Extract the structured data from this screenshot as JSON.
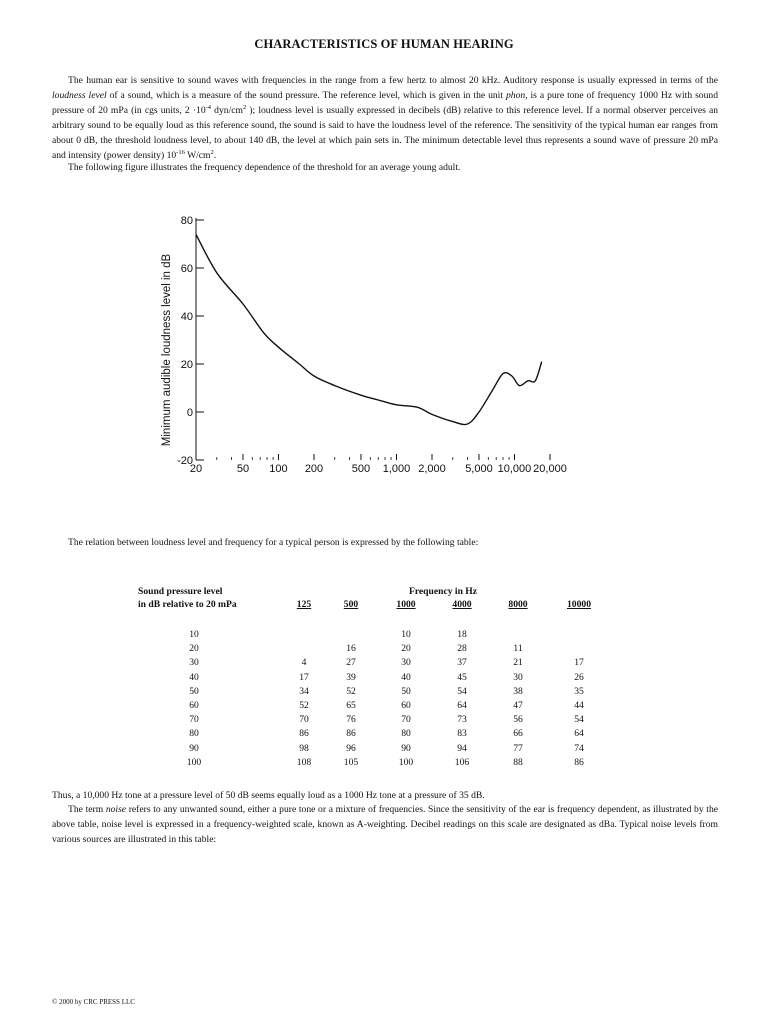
{
  "document": {
    "title": "CHARACTERISTICS OF HUMAN HEARING",
    "para1": {
      "p1": "The human ear is sensitive to sound waves with frequencies in the range from a few hertz to almost 20 kHz. Auditory response is usually expressed in terms of the ",
      "loudness_level": "loudness level",
      "p2": " of a sound, which is a measure of the sound pressure. The reference level, which is given in the unit ",
      "phon": "phon,",
      "p3": " is a pure tone of frequency 1000 Hz with sound pressure of 20 mPa (in cgs units, 2 ·10",
      "sup1": "-4",
      "p4": " dyn/cm",
      "sup2": "2",
      "p5": " ); loudness level is usually expressed in decibels (dB) relative to this reference level. If a normal observer perceives an arbitrary sound to be equally loud as this reference sound, the sound is said to have the loudness level of the reference. The sensitivity of the typical human ear ranges from about 0 dB, the threshold loudness level, to about 140 dB, the level at which pain sets in. The minimum detectable level thus represents a sound wave of pressure 20 mPa and intensity (power density) 10",
      "sup3": "-16",
      "p6": " W/cm",
      "sup4": "2",
      "p7": "."
    },
    "para2": "The following figure illustrates the frequency dependence of the threshold for an average young adult.",
    "para3": "The relation between loudness level and frequency for a typical person is expressed by the following table:",
    "para4": "Thus, a 10,000 Hz tone at a pressure level of 50 dB seems equally loud as a 1000 Hz tone at a pressure of 35 dB.",
    "para5": {
      "p1": "The term ",
      "noise": "noise",
      "p2": " refers to any unwanted sound, either a pure tone or a mixture of frequencies. Since the sensitivity of the ear is frequency dependent, as illustrated by the above table, noise level is expressed in a frequency-weighted scale, known as A-weighting. Decibel readings on this scale are designated as dBa. Typical noise levels from various sources are illustrated in this table:"
    },
    "footer": "© 2000 by CRC PRESS LLC"
  },
  "chart_data": {
    "type": "line",
    "title": "",
    "xlabel": "",
    "ylabel": "Minimum audible loudness level in dB",
    "x_scale": "log",
    "xlim": [
      20,
      20000
    ],
    "ylim": [
      -20,
      80
    ],
    "y_ticks": [
      80,
      60,
      40,
      20,
      0,
      -20
    ],
    "x_ticks": [
      20,
      50,
      100,
      200,
      500,
      1000,
      2000,
      5000,
      10000,
      20000
    ],
    "x_tick_labels": [
      "20",
      "50",
      "100",
      "200",
      "500",
      "1,000",
      "2,000",
      "5,000",
      "10,000",
      "20,000"
    ],
    "grid": false,
    "series": [
      {
        "name": "",
        "x": [
          20,
          30,
          50,
          75,
          100,
          150,
          200,
          300,
          500,
          700,
          1000,
          1500,
          2000,
          3000,
          4000,
          5000,
          6500,
          8000,
          9500,
          11000,
          13000,
          15000,
          17000
        ],
        "y": [
          74,
          58,
          45,
          33,
          27,
          20,
          15,
          11,
          7,
          5,
          3,
          2,
          -1,
          -4,
          -5,
          0,
          9,
          16,
          15,
          11,
          13,
          13,
          21
        ]
      }
    ]
  },
  "loudness_table": {
    "row_header_line1": "Sound pressure  level",
    "row_header_line2": "in dB relative to 20 mPa",
    "group_header": "Frequency in Hz",
    "columns": [
      "125",
      "500",
      "1000",
      "4000",
      "8000",
      "10000"
    ],
    "rows": [
      {
        "level": "10",
        "values": [
          "",
          "",
          "10",
          "18",
          "",
          ""
        ]
      },
      {
        "level": "20",
        "values": [
          "",
          "16",
          "20",
          "28",
          "11",
          ""
        ]
      },
      {
        "level": "30",
        "values": [
          "4",
          "27",
          "30",
          "37",
          "21",
          "17"
        ]
      },
      {
        "level": "40",
        "values": [
          "17",
          "39",
          "40",
          "45",
          "30",
          "26"
        ]
      },
      {
        "level": "50",
        "values": [
          "34",
          "52",
          "50",
          "54",
          "38",
          "35"
        ]
      },
      {
        "level": "60",
        "values": [
          "52",
          "65",
          "60",
          "64",
          "47",
          "44"
        ]
      },
      {
        "level": "70",
        "values": [
          "70",
          "76",
          "70",
          "73",
          "56",
          "54"
        ]
      },
      {
        "level": "80",
        "values": [
          "86",
          "86",
          "80",
          "83",
          "66",
          "64"
        ]
      },
      {
        "level": "90",
        "values": [
          "98",
          "96",
          "90",
          "94",
          "77",
          "74"
        ]
      },
      {
        "level": "100",
        "values": [
          "108",
          "105",
          "100",
          "106",
          "88",
          "86"
        ]
      }
    ]
  }
}
